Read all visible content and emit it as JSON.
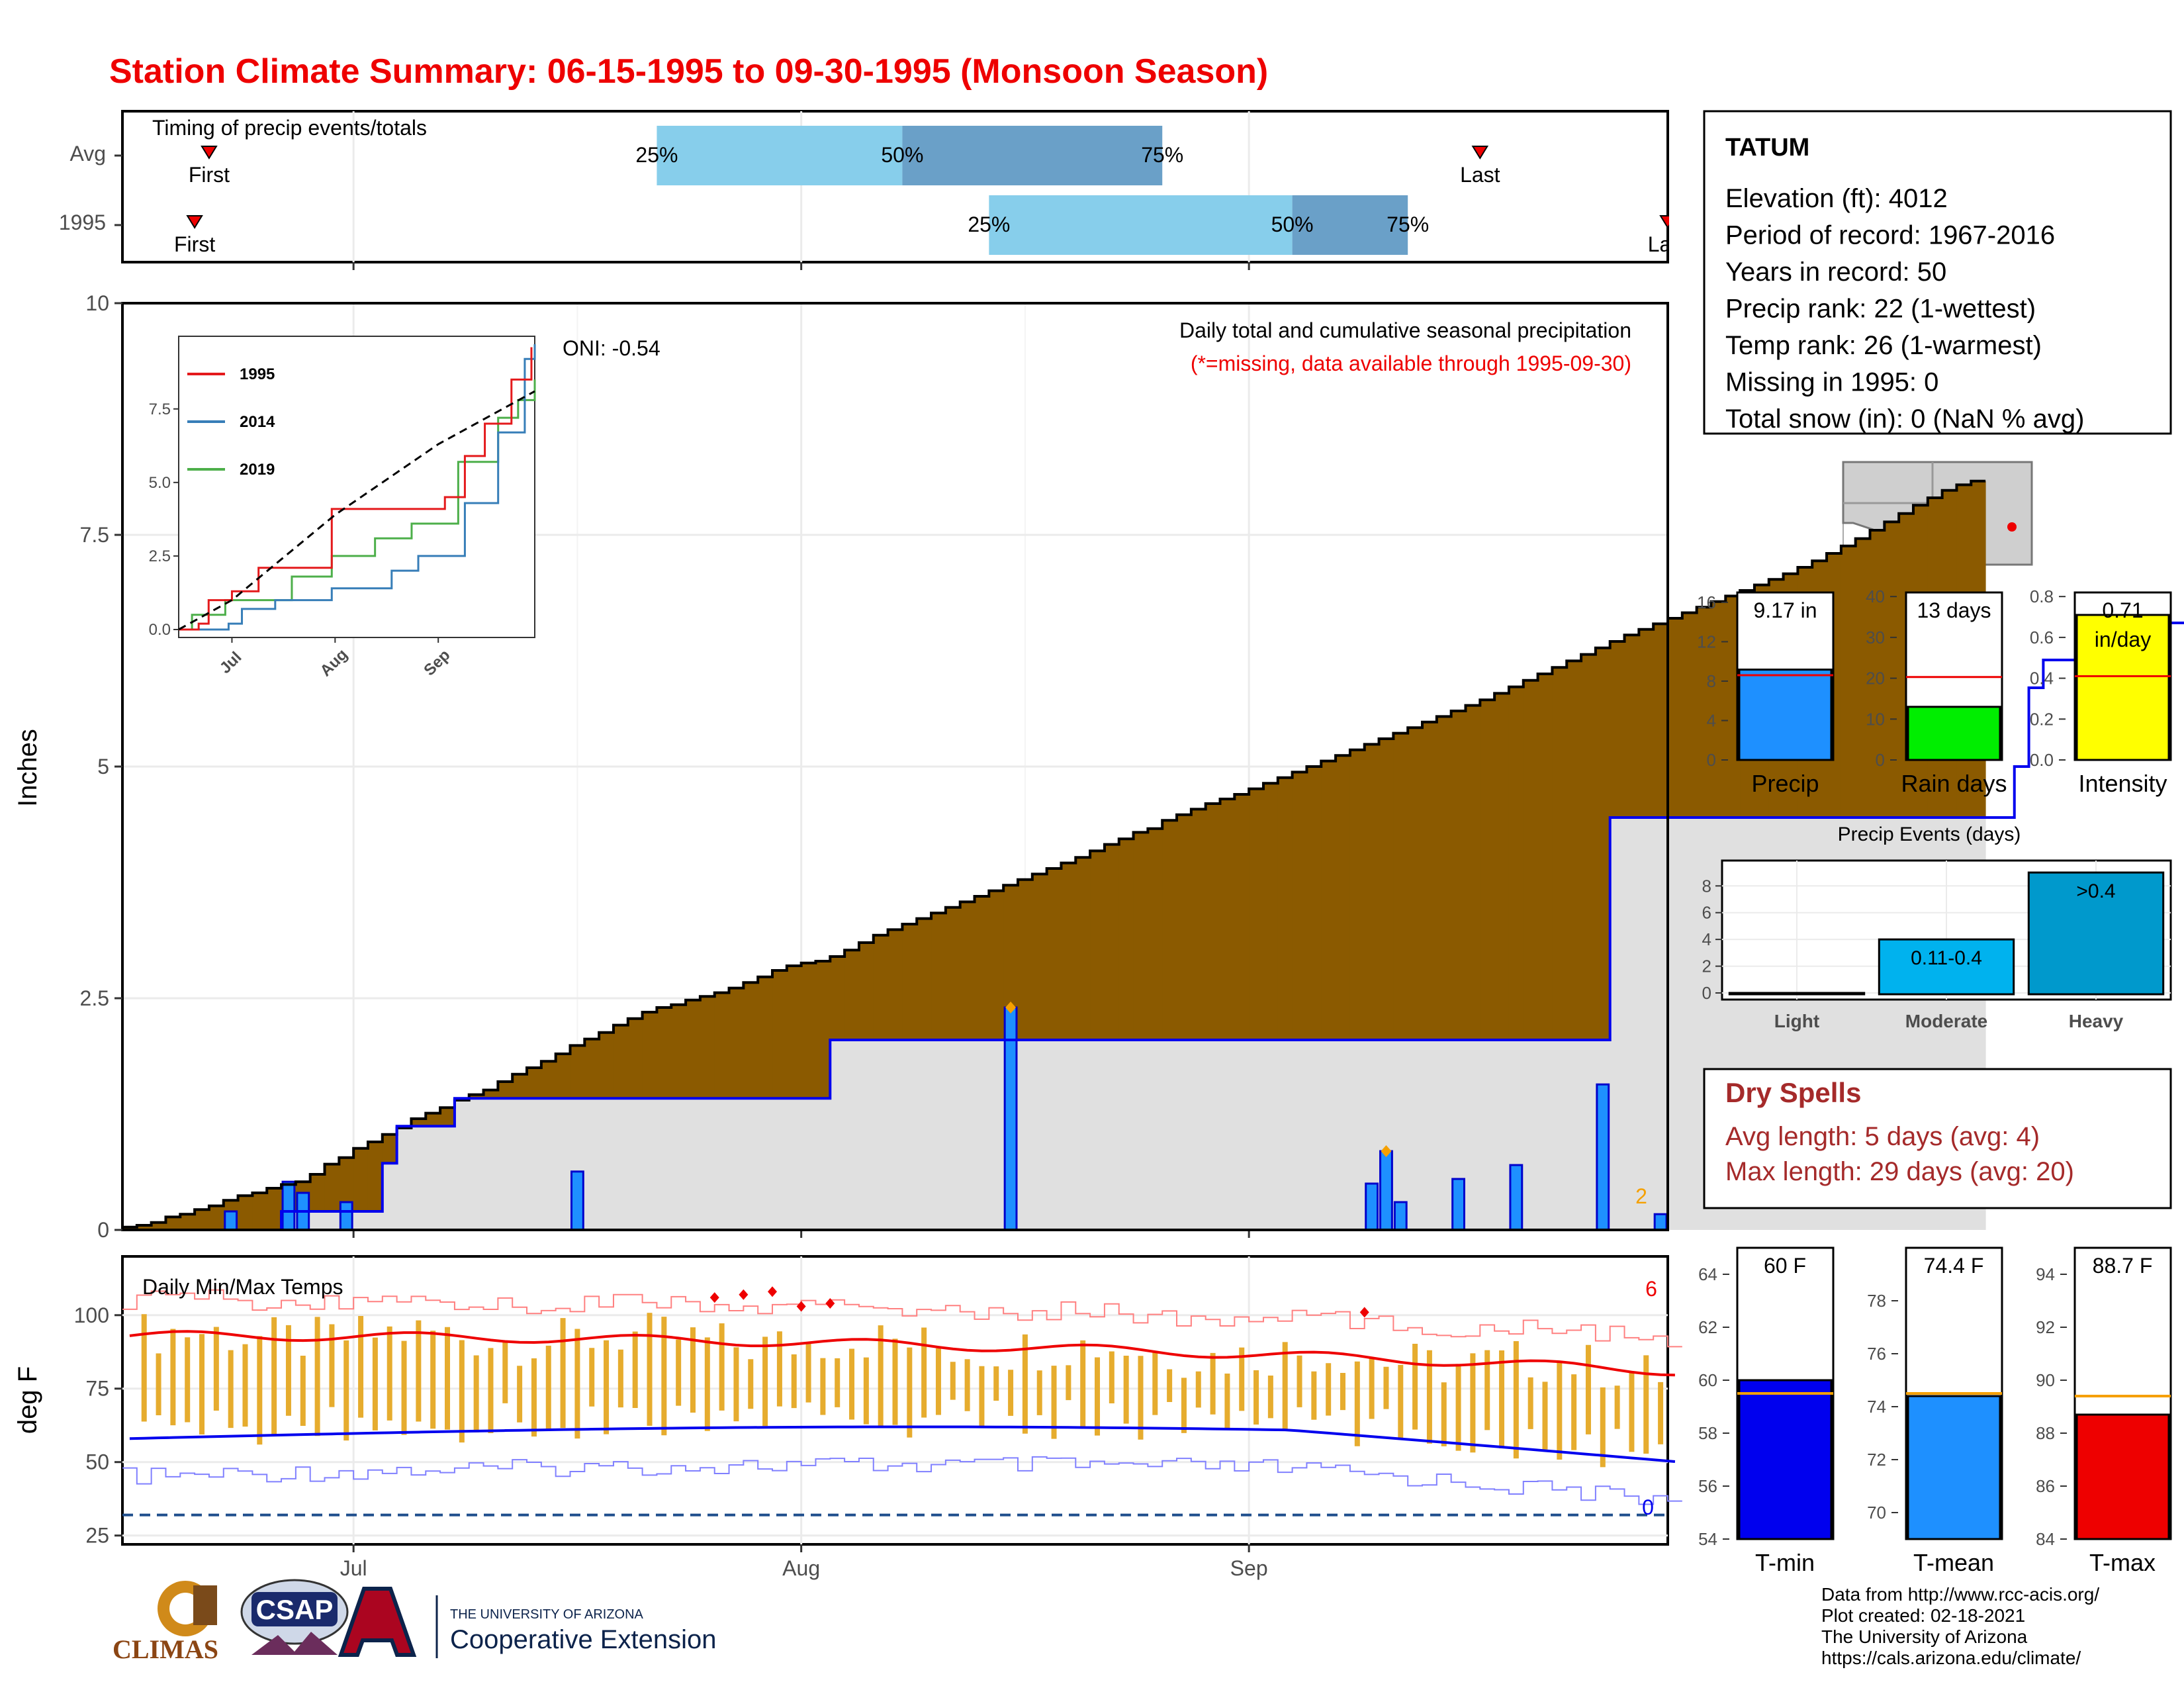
{
  "title": "Station Climate Summary: 06-15-1995 to 09-30-1995 (Monsoon Season)",
  "colors": {
    "title": "#ee0000",
    "brown": "#8b5a00",
    "green": "#008000",
    "avg_fill": "#e0e0e0",
    "blue_line": "#0000ff",
    "bar_blue": "#1e90ff",
    "orange": "#f5a000",
    "q_light": "#87ceeb",
    "q_dark": "#6aa0c8",
    "dry_red": "#a52a2a",
    "grid": "#ebebeb"
  },
  "timing": {
    "label": "Timing of precip events/totals",
    "rows": [
      {
        "name": "Avg",
        "first_doy": 172,
        "last_doy": 260,
        "q25": 203,
        "q50": 220,
        "q75": 238
      },
      {
        "name": "1995",
        "first_doy": 171,
        "last_doy": 273,
        "q25": 226,
        "q50": 247,
        "q75": 255
      }
    ],
    "q_labels": [
      "25%",
      "50%",
      "75%"
    ],
    "first_label": "First",
    "last_label": "Last"
  },
  "station": {
    "name": "TATUM",
    "lines": [
      "Elevation (ft): 4012",
      "Period of record: 1967-2016",
      "Years in record: 50",
      "Precip rank: 22 (1-wettest)",
      "Temp rank: 26 (1-warmest)",
      "Missing in 1995: 0",
      "Total snow (in): 0 (NaN % avg)"
    ]
  },
  "main_chart": {
    "ylabel": "Inches",
    "yticks": [
      0,
      2.5,
      5,
      7.5,
      10
    ],
    "ylim": [
      0,
      10
    ],
    "xlim_doy": [
      166,
      273
    ],
    "month_ticks": [
      {
        "label": "Jul",
        "doy": 182
      },
      {
        "label": "Aug",
        "doy": 213
      },
      {
        "label": "Sep",
        "doy": 244
      }
    ],
    "caption1": "Daily total and cumulative seasonal precipitation",
    "caption2": "(*=missing, data available through 1995-09-30)",
    "oni": "ONI: -0.54",
    "corner_count": "2"
  },
  "chart_data": {
    "type": "area",
    "x_start_doy": 166,
    "avg_cumulative": [
      0.03,
      0.05,
      0.08,
      0.14,
      0.17,
      0.22,
      0.26,
      0.32,
      0.37,
      0.4,
      0.45,
      0.49,
      0.52,
      0.6,
      0.71,
      0.78,
      0.88,
      0.95,
      1.03,
      1.1,
      1.2,
      1.26,
      1.32,
      1.4,
      1.46,
      1.51,
      1.6,
      1.68,
      1.75,
      1.82,
      1.9,
      1.99,
      2.06,
      2.13,
      2.21,
      2.28,
      2.35,
      2.4,
      2.43,
      2.48,
      2.52,
      2.56,
      2.61,
      2.67,
      2.73,
      2.8,
      2.85,
      2.88,
      2.9,
      2.95,
      3.02,
      3.1,
      3.18,
      3.24,
      3.3,
      3.36,
      3.42,
      3.48,
      3.54,
      3.6,
      3.66,
      3.72,
      3.78,
      3.84,
      3.9,
      3.96,
      4.02,
      4.09,
      4.16,
      4.22,
      4.29,
      4.33,
      4.42,
      4.48,
      4.54,
      4.6,
      4.65,
      4.7,
      4.76,
      4.82,
      4.88,
      4.94,
      5.0,
      5.06,
      5.12,
      5.18,
      5.24,
      5.3,
      5.36,
      5.42,
      5.48,
      5.54,
      5.6,
      5.66,
      5.72,
      5.79,
      5.86,
      5.93,
      6.0,
      6.07,
      6.14,
      6.21,
      6.28,
      6.35,
      6.42,
      6.48,
      6.54,
      6.6,
      6.66,
      6.72,
      6.78,
      6.84,
      6.9,
      6.96,
      7.02,
      7.08,
      7.15,
      7.22,
      7.3,
      7.38,
      7.46,
      7.55,
      7.64,
      7.73,
      7.82,
      7.9,
      7.98,
      8.04,
      8.08
    ],
    "year_cumulative": [
      0,
      0,
      0,
      0,
      0,
      0,
      0,
      0,
      0,
      0,
      0,
      0.2,
      0.2,
      0.2,
      0.2,
      0.2,
      0.2,
      0.2,
      0.72,
      1.12,
      1.12,
      1.12,
      1.12,
      1.42,
      1.42,
      1.42,
      1.42,
      1.42,
      1.42,
      1.42,
      1.42,
      1.42,
      1.42,
      1.42,
      1.42,
      1.42,
      1.42,
      1.42,
      1.42,
      1.42,
      1.42,
      1.42,
      1.42,
      1.42,
      1.42,
      1.42,
      1.42,
      1.42,
      1.42,
      2.05,
      2.05,
      2.05,
      2.05,
      2.05,
      2.05,
      2.05,
      2.05,
      2.05,
      2.05,
      2.05,
      2.05,
      2.05,
      2.05,
      2.05,
      2.05,
      2.05,
      2.05,
      2.05,
      2.05,
      2.05,
      2.05,
      2.05,
      2.05,
      2.05,
      2.05,
      2.05,
      2.05,
      2.05,
      2.05,
      2.05,
      2.05,
      2.05,
      2.05,
      2.05,
      2.05,
      2.05,
      2.05,
      2.05,
      2.05,
      2.05,
      2.05,
      2.05,
      2.05,
      2.05,
      2.05,
      2.05,
      2.05,
      2.05,
      2.05,
      2.05,
      2.05,
      2.05,
      2.05,
      4.45,
      4.45,
      4.45,
      4.45,
      4.45,
      4.45,
      4.45,
      4.45,
      4.45,
      4.45,
      4.45,
      4.45,
      4.45,
      4.45,
      4.45,
      4.45,
      4.45,
      4.45,
      4.45,
      4.45,
      4.45,
      4.45,
      4.45,
      4.45,
      4.45,
      4.45,
      4.45,
      4.45,
      5.0,
      5.85,
      6.15,
      6.15,
      6.15,
      6.15,
      6.15,
      6.15,
      6.55,
      6.55,
      6.55,
      6.55,
      6.55,
      7.25,
      7.25,
      7.25,
      7.25,
      7.25,
      7.25,
      7.25,
      7.25,
      7.25,
      7.25,
      7.25,
      7.25,
      7.25,
      8.95,
      8.95,
      8.95,
      8.95,
      9.12,
      9.17
    ],
    "daily_bars": [
      {
        "doy": 173,
        "value": 0.2
      },
      {
        "doy": 177,
        "value": 0.52
      },
      {
        "doy": 178,
        "value": 0.4
      },
      {
        "doy": 181,
        "value": 0.3
      },
      {
        "doy": 197,
        "value": 0.63
      },
      {
        "doy": 227,
        "value": 2.4
      },
      {
        "doy": 252,
        "value": 0.5
      },
      {
        "doy": 253,
        "value": 0.85
      },
      {
        "doy": 254,
        "value": 0.3
      },
      {
        "doy": 258,
        "value": 0.55
      },
      {
        "doy": 262,
        "value": 0.7
      },
      {
        "doy": 268,
        "value": 1.57
      },
      {
        "doy": 272,
        "value": 0.17
      }
    ],
    "flagged_doys": [
      227,
      253
    ]
  },
  "inset": {
    "legend": [
      "1995",
      "2014",
      "2019"
    ],
    "legend_colors": [
      "#e41a1c",
      "#377eb8",
      "#4daf4a"
    ],
    "yticks": [
      "0.0",
      "2.5",
      "5.0",
      "7.5"
    ],
    "xticks": [
      "Jul",
      "Aug",
      "Sep"
    ],
    "series_1995": [
      [
        166,
        0
      ],
      [
        172,
        0.2
      ],
      [
        175,
        1.0
      ],
      [
        182,
        1.3
      ],
      [
        190,
        2.1
      ],
      [
        205,
        2.1
      ],
      [
        212,
        4.1
      ],
      [
        245,
        4.1
      ],
      [
        246,
        4.5
      ],
      [
        252,
        5.9
      ],
      [
        258,
        7.0
      ],
      [
        266,
        8.5
      ],
      [
        272,
        9.6
      ]
    ],
    "series_2014": [
      [
        166,
        0
      ],
      [
        181,
        0.2
      ],
      [
        185,
        0.7
      ],
      [
        195,
        1.0
      ],
      [
        212,
        1.4
      ],
      [
        230,
        2.0
      ],
      [
        238,
        2.5
      ],
      [
        252,
        4.3
      ],
      [
        262,
        6.7
      ],
      [
        270,
        9.2
      ],
      [
        273,
        9.7
      ]
    ],
    "series_2019": [
      [
        166,
        0
      ],
      [
        170,
        0.5
      ],
      [
        180,
        1.0
      ],
      [
        200,
        1.8
      ],
      [
        212,
        2.5
      ],
      [
        225,
        3.1
      ],
      [
        236,
        3.6
      ],
      [
        250,
        5.7
      ],
      [
        262,
        7.2
      ],
      [
        268,
        7.8
      ],
      [
        273,
        8.5
      ]
    ],
    "series_avg": [
      [
        166,
        0
      ],
      [
        182,
        1.0
      ],
      [
        213,
        3.9
      ],
      [
        244,
        6.3
      ],
      [
        273,
        8.1
      ]
    ]
  },
  "bars_precip": {
    "label": "Precip",
    "value_label": "9.17 in",
    "value": 9.17,
    "avg": 8.6,
    "yticks": [
      "0",
      "4",
      "8",
      "12",
      "16"
    ],
    "ymax": 17,
    "color": "#1e90ff"
  },
  "bars_raindays": {
    "label": "Rain days",
    "value_label": "13 days",
    "value": 13,
    "avg": 20.3,
    "yticks": [
      "0",
      "10",
      "20",
      "30",
      "40"
    ],
    "ymax": 41,
    "color": "#00ee00"
  },
  "bars_intensity": {
    "label": "Intensity",
    "value_label": "0.71\nin/day",
    "value_label_1": "0.71",
    "value_label_2": "in/day",
    "value": 0.71,
    "avg": 0.41,
    "yticks": [
      "0.0",
      "0.2",
      "0.4",
      "0.6",
      "0.8"
    ],
    "ymax": 0.82,
    "color": "#ffff00"
  },
  "events": {
    "title": "Precip Events (days)",
    "categories": [
      "Light",
      "Moderate",
      "Heavy"
    ],
    "values": [
      0,
      4,
      9
    ],
    "labels": [
      "",
      "0.11-0.4",
      ">0.4"
    ],
    "yticks": [
      "0",
      "2",
      "4",
      "6",
      "8"
    ],
    "colors": [
      "#87ceeb",
      "#00b2ee",
      "#0099cc"
    ]
  },
  "dry_spells": {
    "title": "Dry Spells",
    "avg_line": "Avg length: 5 days (avg: 4)",
    "max_line": "Max length: 29 days (avg: 20)"
  },
  "temps": {
    "label": "Daily Min/Max Temps",
    "ylabel": "deg F",
    "yticks": [
      25,
      50,
      75,
      100
    ],
    "ylim": [
      22,
      120
    ],
    "count_hot": "6",
    "count_cold": "0",
    "freeze_line": 32
  },
  "tbar_min": {
    "label": "T-min",
    "value_label": "60 F",
    "value": 60,
    "avg": 59.5,
    "yticks": [
      "54",
      "56",
      "58",
      "60",
      "62",
      "64"
    ],
    "range": [
      54,
      65
    ],
    "color": "#0000ee"
  },
  "tbar_mean": {
    "label": "T-mean",
    "value_label": "74.4 F",
    "value": 74.4,
    "avg": 74.5,
    "yticks": [
      "70",
      "72",
      "74",
      "76",
      "78"
    ],
    "range": [
      69,
      80
    ],
    "color": "#1e90ff"
  },
  "tbar_max": {
    "label": "T-max",
    "value_label": "88.7 F",
    "value": 88.7,
    "avg": 89.4,
    "yticks": [
      "84",
      "86",
      "88",
      "90",
      "92",
      "94"
    ],
    "range": [
      84,
      95
    ],
    "color": "#ee0000"
  },
  "credits": [
    "Data from http://www.rcc-acis.org/",
    "Plot created: 02-18-2021",
    "The University of Arizona",
    "https://cals.arizona.edu/climate/"
  ],
  "logos": {
    "climas": "CLIMAS",
    "csap": "CSAP",
    "ua_line1": "THE UNIVERSITY OF ARIZONA",
    "ua_line2": "Cooperative Extension"
  }
}
